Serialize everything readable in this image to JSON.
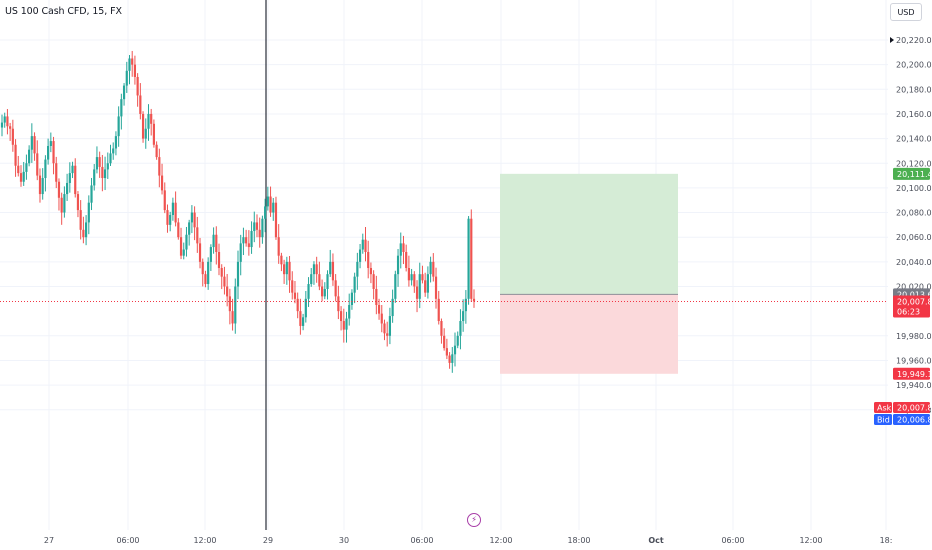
{
  "header": {
    "symbol_title": "US 100 Cash CFD, 15, FX",
    "currency_button": "USD"
  },
  "colors": {
    "up": "#26a69a",
    "down": "#ef5350",
    "profit_zone": "#d5ecd6",
    "loss_zone": "#fbd9db",
    "grid": "#f0f3fa",
    "price_line": "#f23645",
    "cursor_line": "#2a2e39",
    "target_tag": "#4caf50",
    "stop_tag": "#f23645",
    "entry_tag": "#787b86",
    "ask_tag": "#f23645",
    "bid_tag": "#2962ff"
  },
  "icons": {
    "bottom_marker": "lightning-icon"
  },
  "axis": {
    "price_ticks": [
      {
        "value": 20220,
        "label": "20,220.00"
      },
      {
        "value": 20200,
        "label": "20,200.00"
      },
      {
        "value": 20180,
        "label": "20,180.00"
      },
      {
        "value": 20160,
        "label": "20,160.00"
      },
      {
        "value": 20140,
        "label": "20,140.00"
      },
      {
        "value": 20120,
        "label": "20,120.00"
      },
      {
        "value": 20100,
        "label": "20,100.00"
      },
      {
        "value": 20080,
        "label": "20,080.00"
      },
      {
        "value": 20060,
        "label": "20,060.00"
      },
      {
        "value": 20040,
        "label": "20,040.00"
      },
      {
        "value": 20020,
        "label": "20,020.00"
      },
      {
        "value": 19980,
        "label": "19,980.00"
      },
      {
        "value": 19960,
        "label": "19,960.00"
      },
      {
        "value": 19940,
        "label": "19,940.00"
      },
      {
        "value": 19920,
        "label": "19,920.00"
      }
    ],
    "time_ticks": [
      {
        "label": "27",
        "bold": false
      },
      {
        "label": "06:00",
        "bold": false
      },
      {
        "label": "12:00",
        "bold": false
      },
      {
        "label": "29",
        "bold": false
      },
      {
        "label": "30",
        "bold": false
      },
      {
        "label": "06:00",
        "bold": false
      },
      {
        "label": "12:00",
        "bold": false
      },
      {
        "label": "18:00",
        "bold": false
      },
      {
        "label": "Oct",
        "bold": true
      },
      {
        "label": "06:00",
        "bold": false
      },
      {
        "label": "12:00",
        "bold": false
      },
      {
        "label": "18:",
        "bold": false
      }
    ]
  },
  "price_tags": {
    "target": "20,111.42",
    "entry": "20,013.66",
    "last_price": "20,007.86",
    "countdown": "06:23",
    "ask_label": "Ask",
    "ask_value": "20,007.86",
    "bid_label": "Bid",
    "bid_value": "20,006.86",
    "stop": "19,949.18"
  },
  "chart_data": {
    "type": "candlestick",
    "title": "US 100 Cash CFD, 15, FX",
    "ylim": [
      19914,
      20228
    ],
    "current_price": 20007.86,
    "position": {
      "type": "long",
      "entry": 20013.66,
      "target": 20111.42,
      "stop": 19949.18
    },
    "candles_close_path": [
      20153,
      20158,
      20150,
      20148,
      20135,
      20118,
      20112,
      20105,
      20113,
      20120,
      20131,
      20142,
      20128,
      20110,
      20095,
      20108,
      20123,
      20134,
      20138,
      20120,
      20105,
      20092,
      20080,
      20095,
      20104,
      20112,
      20118,
      20095,
      20082,
      20066,
      20060,
      20072,
      20088,
      20102,
      20115,
      20125,
      20117,
      20108,
      20115,
      20120,
      20128,
      20132,
      20142,
      20158,
      20172,
      20183,
      20195,
      20205,
      20200,
      20190,
      20175,
      20160,
      20140,
      20148,
      20160,
      20152,
      20135,
      20125,
      20110,
      20098,
      20082,
      20070,
      20078,
      20088,
      20072,
      20060,
      20045,
      20050,
      20062,
      20072,
      20080,
      20068,
      20055,
      20040,
      20030,
      20022,
      20040,
      20052,
      20062,
      20048,
      20035,
      20028,
      20020,
      20012,
      20000,
      19990,
      20020,
      20040,
      20055,
      20060,
      20055,
      20052,
      20065,
      20072,
      20066,
      20060,
      20075,
      20085,
      20093,
      20080,
      20088,
      20060,
      20045,
      20038,
      20030,
      20040,
      20025,
      20015,
      20010,
      20000,
      19988,
      19995,
      20010,
      20022,
      20030,
      20038,
      20030,
      20020,
      20012,
      20018,
      20030,
      20040,
      20025,
      20012,
      20000,
      19992,
      19985,
      19994,
      20005,
      20015,
      20028,
      20040,
      20050,
      20058,
      20048,
      20035,
      20030,
      20018,
      20005,
      19998,
      19990,
      19982,
      19980,
      19996,
      20010,
      20030,
      20045,
      20055,
      20048,
      20035,
      20025,
      20030,
      20020,
      20010,
      20030,
      20025,
      20015,
      20030,
      20040,
      20028,
      20010,
      19992,
      19980,
      19970,
      19964,
      19958,
      19965,
      19972,
      19980,
      19992,
      20000,
      20010,
      20075,
      20010,
      20008
    ]
  }
}
